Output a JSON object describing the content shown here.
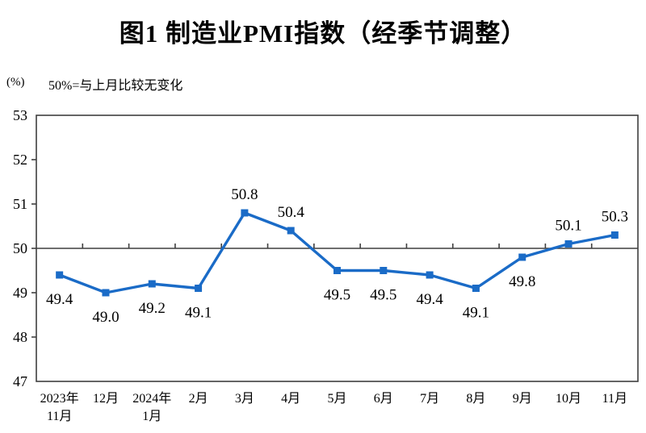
{
  "chart_data": {
    "type": "line",
    "title": "图1  制造业PMI指数（经季节调整）",
    "unit_label": "(%)",
    "note": "50%=与上月比较无变化",
    "categories": [
      [
        "2023年",
        "11月"
      ],
      [
        "12月"
      ],
      [
        "2024年",
        "1月"
      ],
      [
        "2月"
      ],
      [
        "3月"
      ],
      [
        "4月"
      ],
      [
        "5月"
      ],
      [
        "6月"
      ],
      [
        "7月"
      ],
      [
        "8月"
      ],
      [
        "9月"
      ],
      [
        "10月"
      ],
      [
        "11月"
      ]
    ],
    "values": [
      49.4,
      49.0,
      49.2,
      49.1,
      50.8,
      50.4,
      49.5,
      49.5,
      49.4,
      49.1,
      49.8,
      50.1,
      50.3
    ],
    "labels": [
      "49.4",
      "49.0",
      "49.2",
      "49.1",
      "50.8",
      "50.4",
      "49.5",
      "49.5",
      "49.4",
      "49.1",
      "49.8",
      "50.1",
      "50.3"
    ],
    "y_ticks": [
      53,
      52,
      51,
      50,
      49,
      48,
      47
    ],
    "ylim": [
      47,
      53
    ],
    "reference_line": 50,
    "grid": "off",
    "legend": "none",
    "marker": "square",
    "line_color": "#1A6BC7",
    "axis_color": "#3F3F3F"
  }
}
